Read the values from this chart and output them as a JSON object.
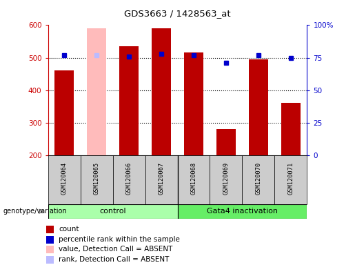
{
  "title": "GDS3663 / 1428563_at",
  "samples": [
    "GSM120064",
    "GSM120065",
    "GSM120066",
    "GSM120067",
    "GSM120068",
    "GSM120069",
    "GSM120070",
    "GSM120071"
  ],
  "bar_values": [
    460,
    590,
    535,
    590,
    515,
    280,
    495,
    360
  ],
  "bar_colors": [
    "#bb0000",
    "#ffbbbb",
    "#bb0000",
    "#bb0000",
    "#bb0000",
    "#bb0000",
    "#bb0000",
    "#bb0000"
  ],
  "rank_values": [
    77,
    77,
    76,
    78,
    77,
    71,
    77,
    75
  ],
  "rank_colors": [
    "#0000cc",
    "#bbbbff",
    "#0000cc",
    "#0000cc",
    "#0000cc",
    "#0000cc",
    "#0000cc",
    "#0000cc"
  ],
  "ymin": 200,
  "ymax": 600,
  "yticks_left": [
    200,
    300,
    400,
    500,
    600
  ],
  "yticks_right": [
    0,
    25,
    50,
    75,
    100
  ],
  "yticks_right_labels": [
    "0",
    "25",
    "50",
    "75",
    "100%"
  ],
  "control_color": "#aaffaa",
  "gata_color": "#66ee66",
  "legend_items": [
    {
      "color": "#bb0000",
      "label": "count"
    },
    {
      "color": "#0000cc",
      "label": "percentile rank within the sample"
    },
    {
      "color": "#ffbbbb",
      "label": "value, Detection Call = ABSENT"
    },
    {
      "color": "#bbbbff",
      "label": "rank, Detection Call = ABSENT"
    }
  ],
  "left_tick_color": "#cc0000",
  "right_tick_color": "#0000cc",
  "bar_width": 0.6,
  "bg_color": "#ffffff",
  "tick_area_bg": "#cccccc"
}
